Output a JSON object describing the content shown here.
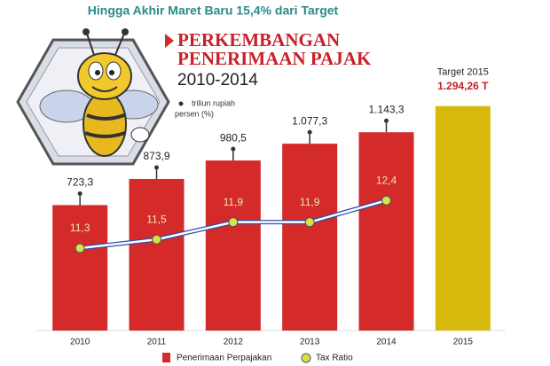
{
  "chart_data": {
    "type": "bar",
    "kicker": "Hingga Akhir Maret Baru 15,4% dari Target",
    "title_lines": [
      "PERKEMBANGAN",
      "PENERIMAAN PAJAK"
    ],
    "subtitle": "2010-2014",
    "units": [
      "triliun rupiah",
      "persen (%)"
    ],
    "annotation": "Target 2015",
    "categories": [
      "2010",
      "2011",
      "2012",
      "2013",
      "2014",
      "2015"
    ],
    "ylim": [
      0,
      1400
    ],
    "y2lim": [
      9.4,
      15
    ],
    "series": [
      {
        "name": "Penerimaan Perpajakan",
        "color": "#d42a2a",
        "colors": [
          "#d42a2a",
          "#d42a2a",
          "#d42a2a",
          "#d42a2a",
          "#d42a2a",
          "#d6b90c"
        ],
        "values": [
          723.3,
          873.9,
          980.5,
          1077.3,
          1143.3,
          1294.26
        ],
        "value_labels": [
          "723,3",
          "873,9",
          "980,5",
          "1.077,3",
          "1.143,3",
          "1.294,26 T"
        ]
      },
      {
        "name": "Tax Ratio",
        "type": "line",
        "axis": "y2",
        "color": "#2a4fa8",
        "marker_color": "#d8e04a",
        "values": [
          11.3,
          11.5,
          11.9,
          11.9,
          12.4,
          null
        ],
        "value_labels": [
          "11,3",
          "11,5",
          "11,9",
          "11,9",
          "12,4",
          null
        ]
      }
    ]
  }
}
